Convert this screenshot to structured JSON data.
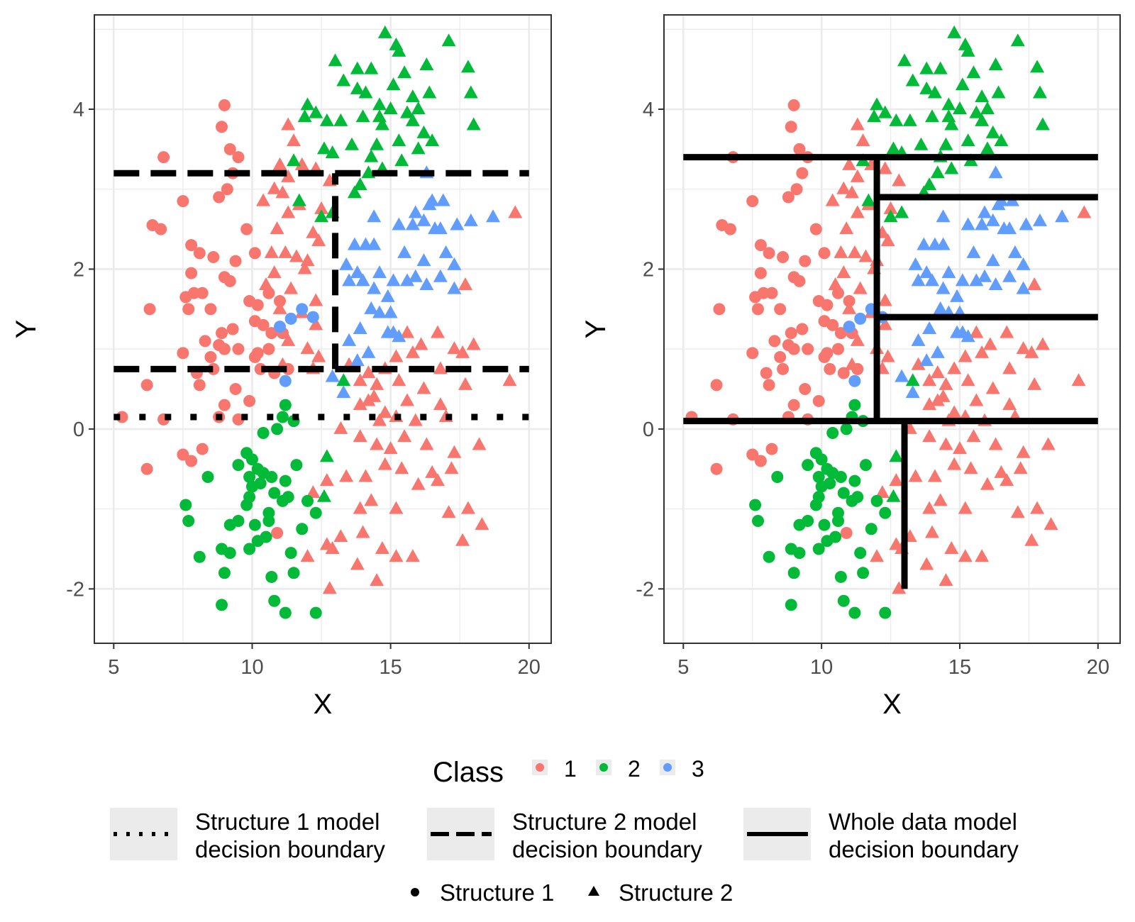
{
  "colors": {
    "class_1": "#F8766D",
    "class_2": "#00BA38",
    "class_3": "#619CFF",
    "boundary": "#000000",
    "grid": "#EBEBEB",
    "key_bg": "#EBEBEB"
  },
  "legend": {
    "class_title": "Class",
    "class_items": [
      {
        "label": "1",
        "cls": 1
      },
      {
        "label": "2",
        "cls": 2
      },
      {
        "label": "3",
        "cls": 3
      }
    ],
    "boundary_items": [
      {
        "line1": "Structure 1 model",
        "line2": "decision boundary",
        "style": "dotted"
      },
      {
        "line1": "Structure 2 model",
        "line2": "decision boundary",
        "style": "dashed"
      },
      {
        "line1": "Whole data model",
        "line2": "decision boundary",
        "style": "solid"
      }
    ],
    "shape_items": [
      {
        "label": "Structure 1",
        "shape": "circle"
      },
      {
        "label": "Structure 2",
        "shape": "triangle"
      }
    ]
  },
  "chart_data": [
    {
      "type": "scatter",
      "panel": "left",
      "xlabel": "X",
      "ylabel": "Y",
      "xlim": [
        4.3,
        20.8
      ],
      "ylim": [
        -2.68,
        5.18
      ],
      "xticks": [
        5,
        10,
        15,
        20
      ],
      "yticks": [
        -2,
        0,
        2,
        4
      ],
      "xtick_labels": [
        "5",
        "10",
        "15",
        "20"
      ],
      "ytick_labels": [
        "-2",
        "0",
        "2",
        "4"
      ],
      "grid": true,
      "boundaries": [
        {
          "style": "dotted",
          "segments": [
            [
              5,
              0.15,
              20,
              0.15
            ]
          ]
        },
        {
          "style": "dashed",
          "segments": [
            [
              5,
              3.2,
              20,
              3.2
            ],
            [
              5,
              0.75,
              20,
              0.75
            ],
            [
              13,
              0.75,
              13,
              3.2
            ]
          ]
        }
      ]
    },
    {
      "type": "scatter",
      "panel": "right",
      "xlabel": "X",
      "ylabel": "Y",
      "xlim": [
        4.3,
        20.8
      ],
      "ylim": [
        -2.68,
        5.18
      ],
      "xticks": [
        5,
        10,
        15,
        20
      ],
      "yticks": [
        -2,
        0,
        2,
        4
      ],
      "xtick_labels": [
        "5",
        "10",
        "15",
        "20"
      ],
      "ytick_labels": [
        "-2",
        "0",
        "2",
        "4"
      ],
      "grid": true,
      "boundaries": [
        {
          "style": "solid",
          "segments": [
            [
              5,
              3.4,
              20,
              3.4
            ],
            [
              5,
              0.1,
              20,
              0.1
            ],
            [
              12,
              0.1,
              12,
              3.4
            ],
            [
              12,
              2.9,
              20,
              2.9
            ],
            [
              12,
              1.4,
              20,
              1.4
            ],
            [
              13,
              -2.0,
              13,
              0.1
            ]
          ]
        }
      ]
    }
  ],
  "points": {
    "note": "Shared by both panels; approximate positions read from the figure.",
    "structure_1": {
      "shape": "circle",
      "class_1": [
        [
          9.0,
          4.05
        ],
        [
          8.9,
          3.78
        ],
        [
          9.2,
          3.5
        ],
        [
          9.5,
          3.4
        ],
        [
          9.3,
          3.2
        ],
        [
          9.1,
          3.0
        ],
        [
          6.8,
          3.4
        ],
        [
          7.5,
          2.85
        ],
        [
          8.8,
          2.9
        ],
        [
          6.4,
          2.55
        ],
        [
          6.7,
          2.5
        ],
        [
          9.8,
          2.5
        ],
        [
          10.1,
          2.2
        ],
        [
          7.8,
          2.3
        ],
        [
          8.1,
          2.2
        ],
        [
          8.6,
          2.15
        ],
        [
          9.4,
          2.1
        ],
        [
          9.0,
          1.9
        ],
        [
          9.2,
          1.85
        ],
        [
          7.8,
          1.95
        ],
        [
          7.6,
          1.65
        ],
        [
          7.9,
          1.7
        ],
        [
          8.2,
          1.7
        ],
        [
          7.7,
          1.5
        ],
        [
          8.5,
          1.5
        ],
        [
          9.9,
          1.6
        ],
        [
          10.2,
          1.55
        ],
        [
          10.6,
          1.7
        ],
        [
          11.0,
          1.6
        ],
        [
          10.1,
          1.35
        ],
        [
          10.4,
          1.3
        ],
        [
          10.7,
          1.2
        ],
        [
          11.1,
          1.2
        ],
        [
          8.9,
          1.2
        ],
        [
          9.3,
          1.25
        ],
        [
          8.3,
          1.1
        ],
        [
          8.8,
          1.05
        ],
        [
          9.0,
          1.0
        ],
        [
          9.5,
          1.0
        ],
        [
          10.2,
          0.95
        ],
        [
          10.6,
          1.0
        ],
        [
          10.1,
          0.9
        ],
        [
          6.3,
          1.5
        ],
        [
          7.5,
          0.95
        ],
        [
          8.5,
          0.9
        ],
        [
          8.0,
          0.7
        ],
        [
          8.6,
          0.75
        ],
        [
          10.3,
          0.75
        ],
        [
          10.8,
          0.7
        ],
        [
          11.3,
          0.75
        ],
        [
          6.2,
          0.55
        ],
        [
          8.1,
          0.55
        ],
        [
          9.4,
          0.5
        ],
        [
          9.9,
          0.35
        ],
        [
          9.0,
          0.3
        ],
        [
          8.8,
          0.15
        ],
        [
          9.5,
          0.12
        ],
        [
          5.3,
          0.15
        ],
        [
          6.8,
          0.12
        ],
        [
          7.5,
          -0.32
        ],
        [
          7.8,
          -0.4
        ],
        [
          8.2,
          -0.25
        ],
        [
          6.2,
          -0.5
        ],
        [
          10.9,
          -1.3
        ]
      ],
      "class_2": [
        [
          11.2,
          0.3
        ],
        [
          11.1,
          0.15
        ],
        [
          11.5,
          0.1
        ],
        [
          10.9,
          0.0
        ],
        [
          10.4,
          -0.05
        ],
        [
          9.8,
          -0.3
        ],
        [
          10.0,
          -0.38
        ],
        [
          9.5,
          -0.45
        ],
        [
          10.2,
          -0.5
        ],
        [
          9.9,
          -0.6
        ],
        [
          10.4,
          -0.55
        ],
        [
          10.7,
          -0.6
        ],
        [
          11.2,
          -0.65
        ],
        [
          11.6,
          -0.45
        ],
        [
          10.3,
          -0.68
        ],
        [
          10.0,
          -0.72
        ],
        [
          10.8,
          -0.8
        ],
        [
          11.3,
          -0.85
        ],
        [
          11.1,
          -0.9
        ],
        [
          12.0,
          -0.9
        ],
        [
          8.4,
          -0.6
        ],
        [
          9.9,
          -0.85
        ],
        [
          9.8,
          -0.95
        ],
        [
          10.6,
          -1.05
        ],
        [
          12.3,
          -1.05
        ],
        [
          10.6,
          -1.15
        ],
        [
          9.2,
          -1.2
        ],
        [
          9.5,
          -1.15
        ],
        [
          10.1,
          -1.2
        ],
        [
          10.5,
          -1.35
        ],
        [
          11.8,
          -1.25
        ],
        [
          10.2,
          -1.4
        ],
        [
          9.9,
          -1.5
        ],
        [
          7.7,
          -1.15
        ],
        [
          7.6,
          -0.95
        ],
        [
          8.9,
          -1.5
        ],
        [
          9.2,
          -1.55
        ],
        [
          8.1,
          -1.6
        ],
        [
          11.4,
          -1.55
        ],
        [
          9.0,
          -1.8
        ],
        [
          10.7,
          -1.85
        ],
        [
          11.5,
          -1.8
        ],
        [
          10.8,
          -2.15
        ],
        [
          8.9,
          -2.2
        ],
        [
          11.2,
          -2.3
        ],
        [
          12.3,
          -2.3
        ]
      ],
      "class_3": [
        [
          11.0,
          1.28
        ],
        [
          11.4,
          1.38
        ],
        [
          11.8,
          1.5
        ],
        [
          12.2,
          1.4
        ],
        [
          11.2,
          0.6
        ]
      ]
    },
    "structure_2": {
      "shape": "triangle",
      "class_1": [
        [
          11.3,
          3.8
        ],
        [
          11.5,
          3.6
        ],
        [
          11.0,
          3.3
        ],
        [
          11.3,
          3.15
        ],
        [
          11.8,
          3.3
        ],
        [
          12.3,
          3.25
        ],
        [
          12.8,
          3.1
        ],
        [
          10.8,
          3.0
        ],
        [
          11.1,
          2.95
        ],
        [
          10.4,
          2.85
        ],
        [
          11.7,
          2.8
        ],
        [
          12.5,
          2.75
        ],
        [
          11.3,
          2.7
        ],
        [
          10.9,
          2.5
        ],
        [
          12.4,
          2.35
        ],
        [
          10.7,
          2.2
        ],
        [
          11.2,
          2.2
        ],
        [
          11.6,
          2.15
        ],
        [
          12.0,
          2.1
        ],
        [
          11.9,
          2.0
        ],
        [
          10.8,
          1.95
        ],
        [
          10.5,
          1.8
        ],
        [
          11.4,
          1.75
        ],
        [
          12.3,
          1.6
        ],
        [
          11.0,
          1.5
        ],
        [
          11.8,
          1.45
        ],
        [
          12.3,
          1.3
        ],
        [
          11.3,
          1.1
        ],
        [
          12.0,
          1.0
        ],
        [
          12.4,
          0.9
        ],
        [
          11.1,
          0.8
        ],
        [
          12.2,
          0.75
        ],
        [
          13.5,
          0.8
        ],
        [
          14.2,
          0.7
        ],
        [
          13.9,
          0.6
        ],
        [
          14.5,
          0.55
        ],
        [
          14.8,
          0.75
        ],
        [
          15.3,
          0.6
        ],
        [
          14.4,
          0.4
        ],
        [
          13.9,
          0.3
        ],
        [
          14.2,
          0.35
        ],
        [
          15.6,
          0.35
        ],
        [
          14.8,
          0.2
        ],
        [
          15.2,
          0.9
        ],
        [
          15.8,
          0.95
        ],
        [
          16.1,
          1.05
        ],
        [
          15.6,
          1.2
        ],
        [
          16.7,
          1.2
        ],
        [
          17.3,
          1.0
        ],
        [
          18.0,
          1.05
        ],
        [
          17.6,
          0.95
        ],
        [
          16.8,
          0.75
        ],
        [
          17.7,
          0.55
        ],
        [
          19.3,
          0.6
        ],
        [
          16.2,
          0.5
        ],
        [
          16.8,
          0.3
        ],
        [
          17.0,
          0.15
        ],
        [
          15.9,
          0.1
        ],
        [
          15.2,
          0.15
        ],
        [
          14.6,
          0.1
        ],
        [
          13.2,
          0.0
        ],
        [
          13.9,
          -0.1
        ],
        [
          14.5,
          -0.2
        ],
        [
          15.0,
          -0.25
        ],
        [
          15.5,
          -0.1
        ],
        [
          16.3,
          -0.2
        ],
        [
          17.3,
          -0.3
        ],
        [
          18.2,
          -0.2
        ],
        [
          14.8,
          -0.45
        ],
        [
          14.1,
          -0.6
        ],
        [
          13.4,
          -0.6
        ],
        [
          12.7,
          -0.65
        ],
        [
          12.2,
          -0.8
        ],
        [
          15.4,
          -0.5
        ],
        [
          16.5,
          -0.55
        ],
        [
          17.2,
          -0.5
        ],
        [
          16.7,
          -0.65
        ],
        [
          16.0,
          -0.7
        ],
        [
          14.3,
          -0.9
        ],
        [
          13.9,
          -1.0
        ],
        [
          15.2,
          -1.0
        ],
        [
          17.8,
          -1.0
        ],
        [
          18.3,
          -1.2
        ],
        [
          14.0,
          -1.3
        ],
        [
          13.2,
          -1.35
        ],
        [
          12.7,
          -1.45
        ],
        [
          14.7,
          -1.5
        ],
        [
          15.2,
          -1.6
        ],
        [
          15.8,
          -1.6
        ],
        [
          17.6,
          -1.4
        ],
        [
          12.0,
          -1.6
        ],
        [
          13.8,
          -1.7
        ],
        [
          14.5,
          -1.9
        ],
        [
          12.8,
          -2.0
        ],
        [
          17.1,
          -1.05
        ],
        [
          12.9,
          -1.5
        ],
        [
          19.5,
          2.7
        ],
        [
          17.7,
          1.8
        ],
        [
          12.2,
          2.45
        ]
      ],
      "class_2": [
        [
          14.8,
          4.95
        ],
        [
          15.2,
          4.8
        ],
        [
          15.3,
          4.72
        ],
        [
          16.3,
          4.55
        ],
        [
          17.1,
          4.85
        ],
        [
          17.8,
          4.52
        ],
        [
          13.0,
          4.6
        ],
        [
          13.8,
          4.5
        ],
        [
          14.3,
          4.5
        ],
        [
          15.5,
          4.45
        ],
        [
          15.1,
          4.3
        ],
        [
          15.8,
          4.15
        ],
        [
          16.4,
          4.2
        ],
        [
          17.9,
          4.2
        ],
        [
          13.3,
          4.35
        ],
        [
          13.8,
          4.25
        ],
        [
          14.1,
          4.2
        ],
        [
          14.6,
          4.05
        ],
        [
          15.0,
          4.0
        ],
        [
          15.6,
          3.95
        ],
        [
          16.0,
          4.0
        ],
        [
          12.0,
          4.05
        ],
        [
          12.3,
          3.95
        ],
        [
          12.7,
          3.85
        ],
        [
          13.2,
          3.85
        ],
        [
          14.0,
          3.9
        ],
        [
          14.7,
          3.8
        ],
        [
          15.8,
          3.85
        ],
        [
          18.0,
          3.8
        ],
        [
          11.9,
          3.9
        ],
        [
          16.2,
          3.7
        ],
        [
          16.5,
          3.6
        ],
        [
          15.3,
          3.6
        ],
        [
          13.6,
          3.55
        ],
        [
          14.5,
          3.55
        ],
        [
          16.0,
          3.5
        ],
        [
          12.9,
          3.45
        ],
        [
          12.6,
          3.5
        ],
        [
          14.3,
          3.4
        ],
        [
          14.7,
          3.25
        ],
        [
          15.4,
          3.35
        ],
        [
          14.2,
          3.2
        ],
        [
          13.9,
          3.05
        ],
        [
          13.7,
          2.95
        ],
        [
          12.9,
          2.7
        ],
        [
          12.5,
          2.65
        ],
        [
          13.3,
          0.6
        ],
        [
          12.7,
          -0.35
        ],
        [
          12.6,
          -0.85
        ],
        [
          11.5,
          3.35
        ],
        [
          11.7,
          2.85
        ],
        [
          14.6,
          3.9
        ]
      ],
      "class_3": [
        [
          16.3,
          3.2
        ],
        [
          16.5,
          2.85
        ],
        [
          16.9,
          2.85
        ],
        [
          16.4,
          2.8
        ],
        [
          15.9,
          2.7
        ],
        [
          16.2,
          2.6
        ],
        [
          17.4,
          2.55
        ],
        [
          15.3,
          2.55
        ],
        [
          14.4,
          2.65
        ],
        [
          15.8,
          2.55
        ],
        [
          16.6,
          2.5
        ],
        [
          16.8,
          2.5
        ],
        [
          17.9,
          2.6
        ],
        [
          18.7,
          2.65
        ],
        [
          13.7,
          2.3
        ],
        [
          14.1,
          2.3
        ],
        [
          14.4,
          2.3
        ],
        [
          15.5,
          2.2
        ],
        [
          16.2,
          2.1
        ],
        [
          17.0,
          2.2
        ],
        [
          17.3,
          2.05
        ],
        [
          13.4,
          2.05
        ],
        [
          13.8,
          1.95
        ],
        [
          14.6,
          1.95
        ],
        [
          15.1,
          1.85
        ],
        [
          15.9,
          1.9
        ],
        [
          14.4,
          1.75
        ],
        [
          14.9,
          1.65
        ],
        [
          15.6,
          1.85
        ],
        [
          16.3,
          1.8
        ],
        [
          13.5,
          1.85
        ],
        [
          14.0,
          1.85
        ],
        [
          14.6,
          1.45
        ],
        [
          14.9,
          1.2
        ],
        [
          15.1,
          1.2
        ],
        [
          13.9,
          1.25
        ],
        [
          13.5,
          1.1
        ],
        [
          13.8,
          0.85
        ],
        [
          14.2,
          0.95
        ],
        [
          15.0,
          1.45
        ],
        [
          16.8,
          1.9
        ],
        [
          17.3,
          1.75
        ],
        [
          15.3,
          1.15
        ],
        [
          14.3,
          1.5
        ],
        [
          12.9,
          0.65
        ],
        [
          13.3,
          0.45
        ]
      ]
    }
  }
}
